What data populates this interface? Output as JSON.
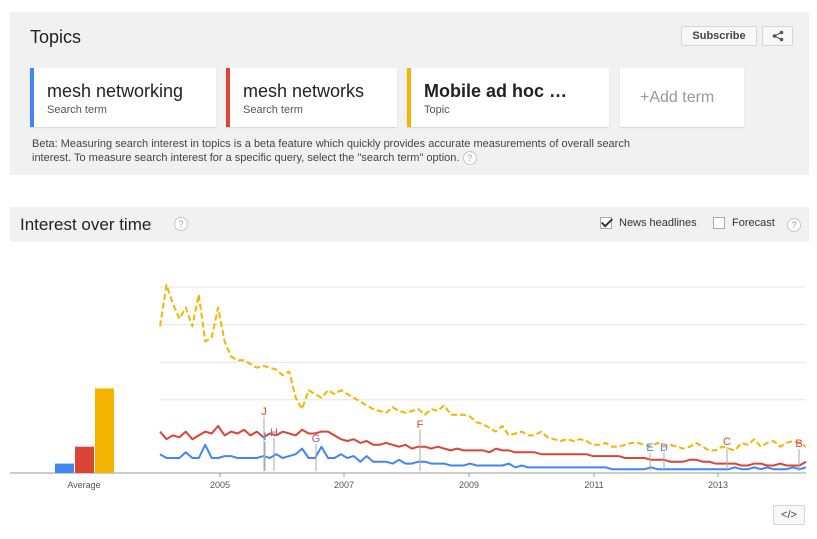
{
  "topics": {
    "title": "Topics",
    "subscribe_label": "Subscribe",
    "share_icon": "share-icon",
    "cards": [
      {
        "name": "mesh networking",
        "type": "Search term",
        "color": "#4285f4"
      },
      {
        "name": "mesh networks",
        "type": "Search term",
        "color": "#db4437"
      },
      {
        "name": "Mobile ad hoc …",
        "type": "Topic",
        "color": "#f4b400"
      }
    ],
    "add_term": "+Add term",
    "note_line1": "Beta: Measuring search interest in topics is a beta feature which quickly provides accurate measurements of overall search",
    "note_line2": "interest. To measure search interest for a specific query, select the \"search term\" option."
  },
  "interest": {
    "title": "Interest over time",
    "help": "?",
    "news_label": "News headlines",
    "news_checked": true,
    "forecast_label": "Forecast",
    "forecast_checked": false,
    "embed_label": "</>"
  },
  "chart_data": {
    "type": "line",
    "average": {
      "label": "Average",
      "values": [
        5,
        14,
        45
      ]
    },
    "x_ticks": [
      "2005",
      "2007",
      "2009",
      "2011",
      "2013"
    ],
    "ylim": [
      0,
      100
    ],
    "series": [
      {
        "name": "mesh networking",
        "color": "#4285f4",
        "dashed": false,
        "values": [
          10,
          8,
          8,
          8,
          11,
          8,
          8,
          15,
          8,
          8,
          9,
          9,
          8,
          8,
          8,
          8,
          9,
          8,
          10,
          8,
          9,
          10,
          13,
          8,
          8,
          14,
          8,
          8,
          10,
          8,
          9,
          6,
          9,
          6,
          6,
          6,
          5,
          7,
          5,
          5,
          6,
          6,
          5,
          5,
          5,
          4,
          4,
          4,
          5,
          4,
          4,
          4,
          4,
          4,
          5,
          3,
          4,
          3,
          3,
          3,
          3,
          3,
          3,
          3,
          3,
          3,
          3,
          3,
          3,
          3,
          2,
          2,
          2,
          2,
          2,
          2,
          3,
          2,
          2,
          2,
          2,
          2,
          2,
          2,
          2,
          2,
          2,
          2,
          2,
          3,
          2,
          2,
          3,
          2,
          3,
          2,
          2,
          2,
          3,
          2,
          3
        ]
      },
      {
        "name": "mesh networks",
        "color": "#db4437",
        "dashed": false,
        "values": [
          22,
          18,
          20,
          19,
          22,
          18,
          20,
          22,
          21,
          25,
          20,
          22,
          21,
          23,
          20,
          22,
          19,
          21,
          20,
          22,
          21,
          20,
          23,
          21,
          21,
          22,
          22,
          20,
          18,
          17,
          18,
          16,
          17,
          15,
          15,
          16,
          15,
          14,
          15,
          13,
          14,
          14,
          13,
          14,
          13,
          12,
          13,
          12,
          12,
          12,
          12,
          11,
          13,
          12,
          12,
          11,
          11,
          11,
          11,
          10,
          10,
          10,
          10,
          10,
          10,
          10,
          10,
          9,
          9,
          9,
          9,
          9,
          8,
          8,
          8,
          8,
          7,
          7,
          7,
          6,
          6,
          6,
          7,
          7,
          6,
          6,
          5,
          5,
          5,
          5,
          4,
          4,
          5,
          5,
          4,
          4,
          5,
          4,
          4,
          4,
          6
        ]
      },
      {
        "name": "Mobile ad hoc …",
        "color": "#f4b400",
        "dashed": true,
        "values": [
          78,
          100,
          90,
          82,
          88,
          78,
          95,
          70,
          72,
          88,
          70,
          62,
          60,
          60,
          58,
          56,
          57,
          56,
          55,
          52,
          54,
          40,
          34,
          44,
          42,
          40,
          44,
          42,
          44,
          42,
          40,
          38,
          36,
          34,
          33,
          32,
          35,
          33,
          32,
          33,
          34,
          31,
          34,
          33,
          36,
          31,
          31,
          31,
          30,
          27,
          26,
          24,
          22,
          25,
          20,
          21,
          22,
          20,
          20,
          22,
          19,
          18,
          17,
          18,
          17,
          18,
          17,
          15,
          15,
          16,
          14,
          14,
          15,
          16,
          16,
          15,
          14,
          16,
          14,
          15,
          14,
          13,
          14,
          16,
          14,
          12,
          12,
          14,
          13,
          12,
          16,
          15,
          18,
          14,
          16,
          17,
          14,
          16,
          17,
          16,
          14
        ]
      }
    ],
    "annotations": [
      {
        "letter": "J",
        "color": "#db4437"
      },
      {
        "letter": "I",
        "color": "#4285f4"
      },
      {
        "letter": "H",
        "color": "#8e5ea2"
      },
      {
        "letter": "G",
        "color": "#8e5ea2"
      },
      {
        "letter": "F",
        "color": "#db4437"
      },
      {
        "letter": "E",
        "color": "#4285f4"
      },
      {
        "letter": "D",
        "color": "#4285f4"
      },
      {
        "letter": "C",
        "color": "#db4437"
      },
      {
        "letter": "B",
        "color": "#db4437"
      }
    ]
  }
}
